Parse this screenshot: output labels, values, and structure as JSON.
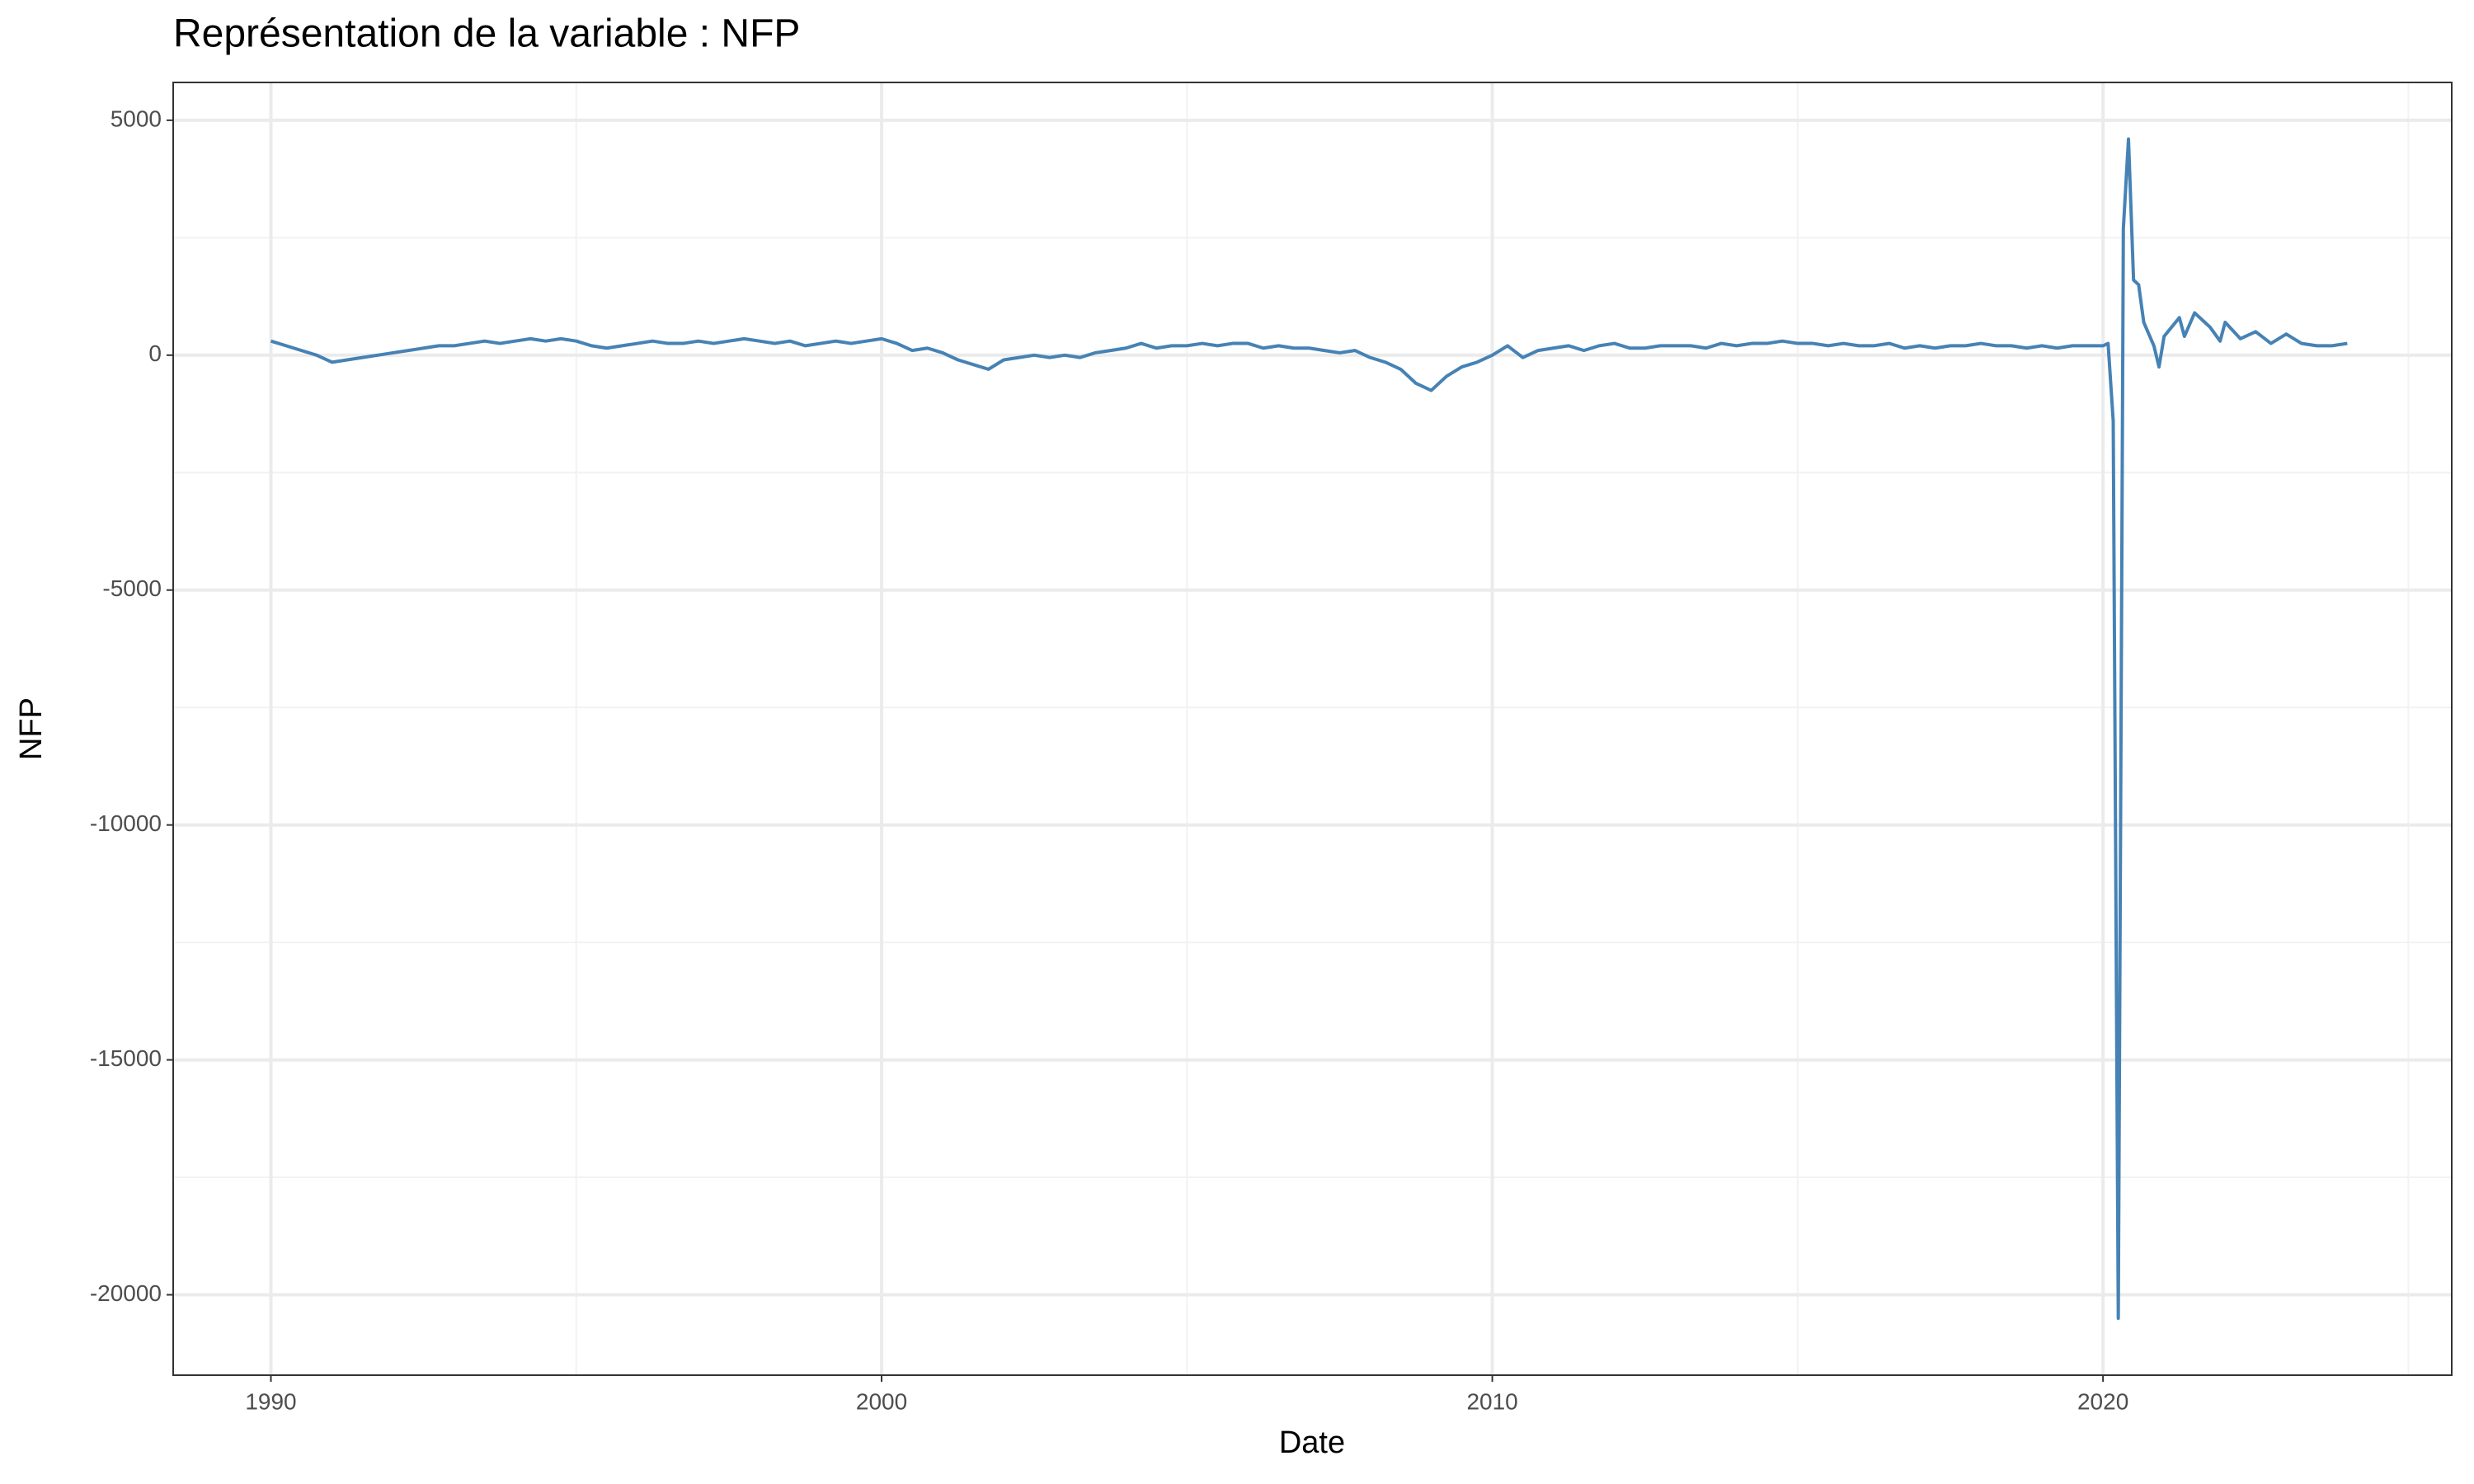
{
  "chart_data": {
    "type": "line",
    "title": "Représentation de la variable :  NFP",
    "xlabel": "Date",
    "ylabel": "NFP",
    "x": [
      1990,
      1990.25,
      1990.5,
      1990.75,
      1991,
      1991.25,
      1991.5,
      1991.75,
      1992,
      1992.25,
      1992.5,
      1992.75,
      1993,
      1993.25,
      1993.5,
      1993.75,
      1994,
      1994.25,
      1994.5,
      1994.75,
      1995,
      1995.25,
      1995.5,
      1995.75,
      1996,
      1996.25,
      1996.5,
      1996.75,
      1997,
      1997.25,
      1997.5,
      1997.75,
      1998,
      1998.25,
      1998.5,
      1998.75,
      1999,
      1999.25,
      1999.5,
      1999.75,
      2000,
      2000.25,
      2000.5,
      2000.75,
      2001,
      2001.25,
      2001.5,
      2001.75,
      2002,
      2002.25,
      2002.5,
      2002.75,
      2003,
      2003.25,
      2003.5,
      2003.75,
      2004,
      2004.25,
      2004.5,
      2004.75,
      2005,
      2005.25,
      2005.5,
      2005.75,
      2006,
      2006.25,
      2006.5,
      2006.75,
      2007,
      2007.25,
      2007.5,
      2007.75,
      2008,
      2008.25,
      2008.5,
      2008.75,
      2009,
      2009.25,
      2009.5,
      2009.75,
      2010,
      2010.25,
      2010.5,
      2010.75,
      2011,
      2011.25,
      2011.5,
      2011.75,
      2012,
      2012.25,
      2012.5,
      2012.75,
      2013,
      2013.25,
      2013.5,
      2013.75,
      2014,
      2014.25,
      2014.5,
      2014.75,
      2015,
      2015.25,
      2015.5,
      2015.75,
      2016,
      2016.25,
      2016.5,
      2016.75,
      2017,
      2017.25,
      2017.5,
      2017.75,
      2018,
      2018.25,
      2018.5,
      2018.75,
      2019,
      2019.25,
      2019.5,
      2019.75,
      2020,
      2020.083,
      2020.167,
      2020.25,
      2020.333,
      2020.417,
      2020.5,
      2020.583,
      2020.667,
      2020.833,
      2020.917,
      2021,
      2021.25,
      2021.333,
      2021.5,
      2021.75,
      2021.917,
      2022,
      2022.25,
      2022.5,
      2022.75,
      2023,
      2023.25,
      2023.5,
      2023.75,
      2024
    ],
    "values": [
      300,
      200,
      100,
      0,
      -150,
      -100,
      -50,
      0,
      50,
      100,
      150,
      200,
      200,
      250,
      300,
      250,
      300,
      350,
      300,
      350,
      300,
      200,
      150,
      200,
      250,
      300,
      250,
      250,
      300,
      250,
      300,
      350,
      300,
      250,
      300,
      200,
      250,
      300,
      250,
      300,
      350,
      250,
      100,
      150,
      50,
      -100,
      -200,
      -300,
      -100,
      -50,
      0,
      -50,
      0,
      -50,
      50,
      100,
      150,
      250,
      150,
      200,
      200,
      250,
      200,
      250,
      250,
      150,
      200,
      150,
      150,
      100,
      50,
      100,
      -50,
      -150,
      -300,
      -600,
      -750,
      -450,
      -250,
      -150,
      0,
      200,
      -50,
      100,
      150,
      200,
      100,
      200,
      250,
      150,
      150,
      200,
      200,
      200,
      150,
      250,
      200,
      250,
      250,
      300,
      250,
      250,
      200,
      250,
      200,
      200,
      250,
      150,
      200,
      150,
      200,
      200,
      250,
      200,
      200,
      150,
      200,
      150,
      200,
      200,
      200,
      250,
      -1400,
      -20500,
      2700,
      4600,
      1600,
      1500,
      700,
      200,
      -250,
      400,
      800,
      400,
      900,
      600,
      300,
      700,
      350,
      500,
      250,
      450,
      250,
      200,
      200,
      250
    ],
    "color": "#4682b4",
    "xlim": [
      1988.4,
      2025.71
    ],
    "ylim": [
      -21711,
      5805
    ],
    "xticks": [
      1990,
      2000,
      2010,
      2020
    ],
    "yticks": [
      -20000,
      -15000,
      -10000,
      -5000,
      0,
      5000
    ],
    "xminor": [
      1995,
      2005,
      2015,
      2025
    ],
    "yminor": [
      -17500,
      -12500,
      -7500,
      -2500,
      2500
    ],
    "grid": true
  }
}
